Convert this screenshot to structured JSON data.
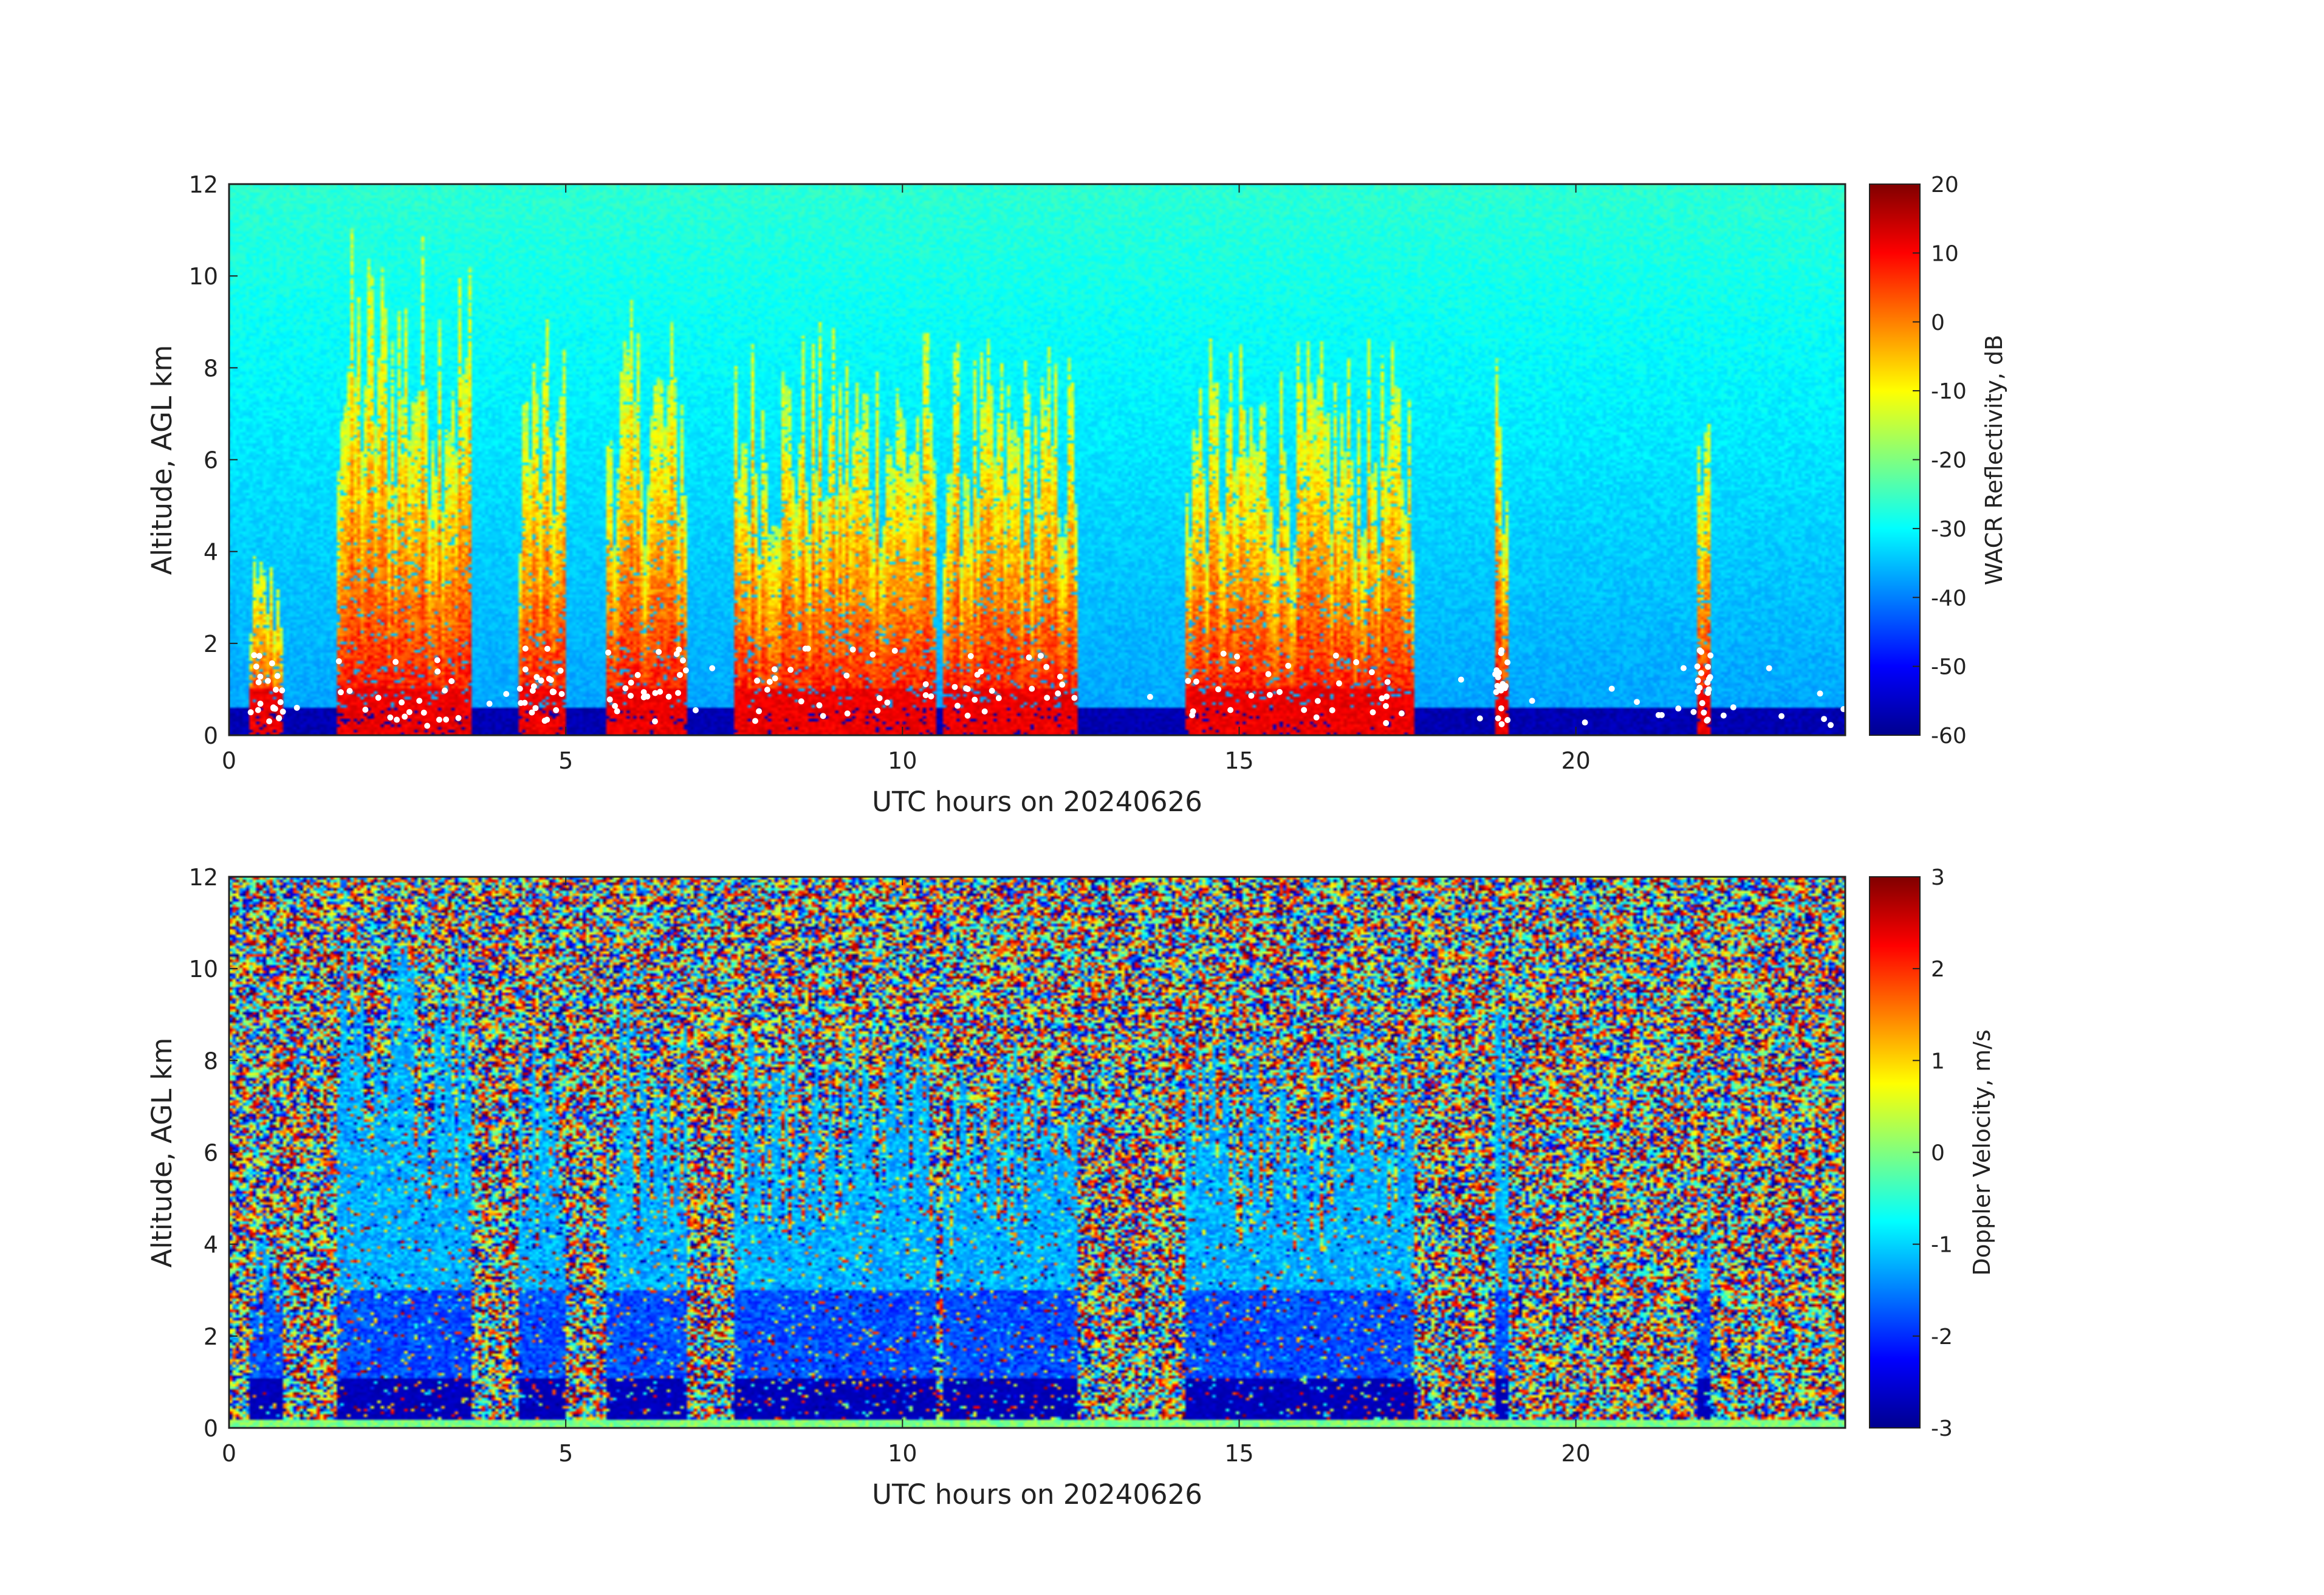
{
  "chart_data": [
    {
      "type": "heatmap",
      "xlabel": "UTC hours on 20240626",
      "ylabel": "Altitude, AGL km",
      "xlim": [
        0,
        24
      ],
      "ylim": [
        0,
        12
      ],
      "x_ticks": [
        "0",
        "5",
        "10",
        "15",
        "20"
      ],
      "y_ticks": [
        "0",
        "2",
        "4",
        "6",
        "8",
        "10",
        "12"
      ],
      "colorbar": {
        "label": "WACR Reflectivity, dB",
        "range": [
          -60,
          20
        ],
        "ticks": [
          "20",
          "10",
          "0",
          "-10",
          "-20",
          "-30",
          "-40",
          "-50",
          "-60"
        ],
        "colormap": "jet"
      },
      "overlay": "white dots near cloud base",
      "cloud_features": [
        {
          "x_start": 0.3,
          "x_end": 0.8,
          "top_km": 3.0
        },
        {
          "x_start": 1.6,
          "x_end": 3.6,
          "top_km": 8.0
        },
        {
          "x_start": 4.3,
          "x_end": 5.0,
          "top_km": 6.5
        },
        {
          "x_start": 5.6,
          "x_end": 6.8,
          "top_km": 6.8
        },
        {
          "x_start": 7.5,
          "x_end": 10.5,
          "top_km": 6.5
        },
        {
          "x_start": 10.6,
          "x_end": 12.6,
          "top_km": 6.2
        },
        {
          "x_start": 14.2,
          "x_end": 17.6,
          "top_km": 6.2
        },
        {
          "x_start": 18.8,
          "x_end": 19.0,
          "top_km": 7.2
        },
        {
          "x_start": 21.8,
          "x_end": 22.0,
          "top_km": 5.0
        }
      ]
    },
    {
      "type": "heatmap",
      "xlabel": "UTC hours on 20240626",
      "ylabel": "Altitude, AGL km",
      "xlim": [
        0,
        24
      ],
      "ylim": [
        0,
        12
      ],
      "x_ticks": [
        "0",
        "5",
        "10",
        "15",
        "20"
      ],
      "y_ticks": [
        "0",
        "2",
        "4",
        "6",
        "8",
        "10",
        "12"
      ],
      "colorbar": {
        "label": "Doppler Velocity, m/s",
        "range": [
          -3,
          3
        ],
        "ticks": [
          "3",
          "2",
          "1",
          "0",
          "-1",
          "-2",
          "-3"
        ],
        "colormap": "jet"
      },
      "background": "random noise across full range",
      "cloud_features": [
        {
          "x_start": 0.3,
          "x_end": 0.8,
          "top_km": 3.0
        },
        {
          "x_start": 1.6,
          "x_end": 3.6,
          "top_km": 7.8
        },
        {
          "x_start": 4.3,
          "x_end": 5.0,
          "top_km": 6.5
        },
        {
          "x_start": 5.6,
          "x_end": 6.8,
          "top_km": 6.8
        },
        {
          "x_start": 7.5,
          "x_end": 10.5,
          "top_km": 6.5
        },
        {
          "x_start": 10.6,
          "x_end": 12.6,
          "top_km": 6.2
        },
        {
          "x_start": 14.2,
          "x_end": 17.6,
          "top_km": 6.2
        },
        {
          "x_start": 18.8,
          "x_end": 19.0,
          "top_km": 7.2
        },
        {
          "x_start": 21.8,
          "x_end": 22.0,
          "top_km": 5.0
        }
      ]
    }
  ]
}
